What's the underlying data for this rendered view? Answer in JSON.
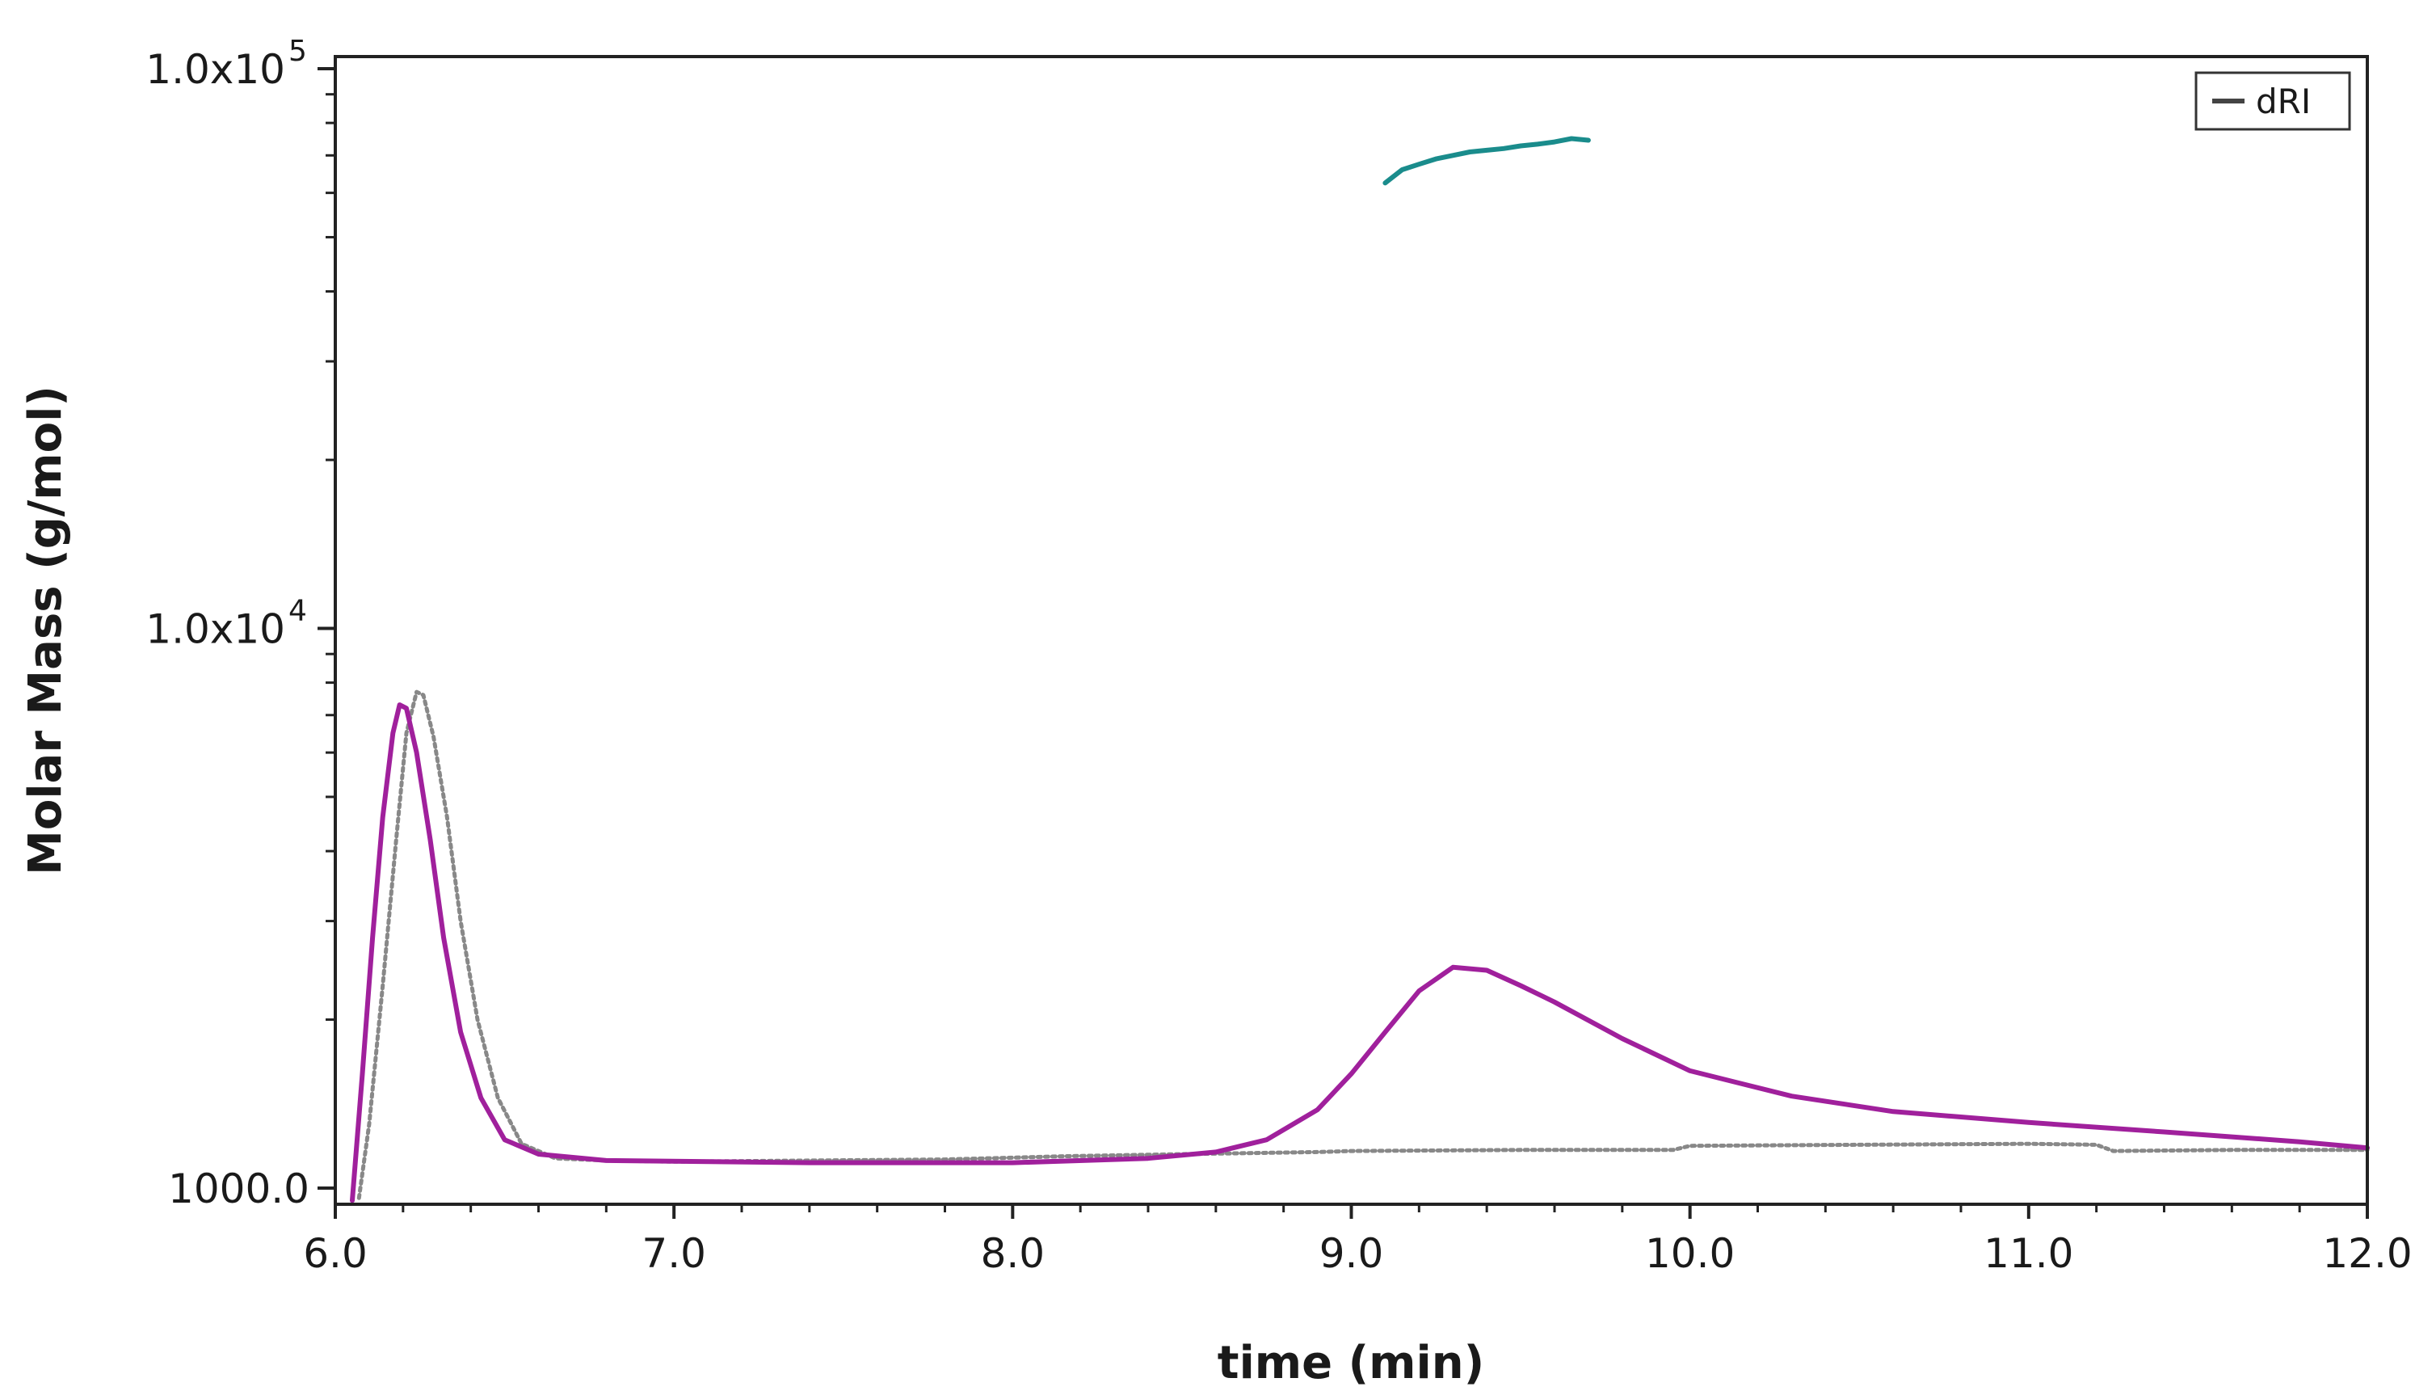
{
  "chart_data": {
    "type": "line",
    "title": "",
    "xlabel": "time (min)",
    "ylabel": "Molar Mass (g/mol)",
    "xlim": [
      6.0,
      12.0
    ],
    "ylim": [
      1000,
      100000
    ],
    "yscale": "log",
    "grid": false,
    "legend_position": "top-right",
    "x_ticks": [
      {
        "value": 6.0,
        "label": "6.0"
      },
      {
        "value": 7.0,
        "label": "7.0"
      },
      {
        "value": 8.0,
        "label": "8.0"
      },
      {
        "value": 9.0,
        "label": "9.0"
      },
      {
        "value": 10.0,
        "label": "10.0"
      },
      {
        "value": 11.0,
        "label": "11.0"
      },
      {
        "value": 12.0,
        "label": "12.0"
      }
    ],
    "y_ticks": [
      {
        "value": 1000,
        "base": "1000.0",
        "exp": ""
      },
      {
        "value": 10000,
        "base": "1.0x10",
        "exp": "4"
      },
      {
        "value": 100000,
        "base": "1.0x10",
        "exp": "5"
      }
    ],
    "y_minor_ticks": [
      2000,
      3000,
      4000,
      5000,
      6000,
      7000,
      8000,
      9000,
      20000,
      30000,
      40000,
      50000,
      60000,
      70000,
      80000,
      90000
    ],
    "legend": [
      {
        "label": "dRI",
        "color": "#444444"
      }
    ],
    "series": [
      {
        "name": "dRI",
        "color": "#888888",
        "style": "dotted",
        "x": [
          6.07,
          6.1,
          6.14,
          6.18,
          6.21,
          6.24,
          6.26,
          6.29,
          6.33,
          6.37,
          6.42,
          6.48,
          6.55,
          6.65,
          6.8,
          7.0,
          7.4,
          7.8,
          8.15,
          8.5,
          8.9,
          9.0,
          9.5,
          9.95,
          10.0,
          10.5,
          11.0,
          11.2,
          11.25,
          11.6,
          12.0
        ],
        "y": [
          960,
          1300,
          2300,
          4200,
          6500,
          7700,
          7600,
          6400,
          4600,
          3000,
          2000,
          1450,
          1200,
          1130,
          1120,
          1115,
          1120,
          1125,
          1140,
          1150,
          1160,
          1165,
          1170,
          1170,
          1190,
          1195,
          1200,
          1195,
          1165,
          1170,
          1170
        ]
      },
      {
        "color": "#a0209c",
        "style": "solid",
        "x": [
          6.05,
          6.08,
          6.11,
          6.14,
          6.17,
          6.19,
          6.21,
          6.24,
          6.28,
          6.32,
          6.37,
          6.43,
          6.5,
          6.6,
          6.8,
          7.4,
          8.0,
          8.4,
          8.6,
          8.75,
          8.9,
          9.0,
          9.1,
          9.2,
          9.3,
          9.4,
          9.5,
          9.6,
          9.8,
          10.0,
          10.3,
          10.6,
          11.0,
          11.4,
          11.8,
          12.0
        ],
        "y": [
          950,
          1600,
          2800,
          4600,
          6500,
          7300,
          7200,
          6000,
          4200,
          2800,
          1900,
          1450,
          1220,
          1150,
          1120,
          1110,
          1110,
          1130,
          1160,
          1220,
          1380,
          1600,
          1900,
          2250,
          2480,
          2450,
          2300,
          2150,
          1850,
          1620,
          1460,
          1370,
          1310,
          1260,
          1210,
          1180
        ]
      },
      {
        "color": "#1a8c8c",
        "style": "solid",
        "x": [
          9.1,
          9.15,
          9.2,
          9.25,
          9.3,
          9.35,
          9.4,
          9.45,
          9.5,
          9.55,
          9.6,
          9.65,
          9.7
        ],
        "y": [
          62500,
          66000,
          67500,
          69000,
          70000,
          71000,
          71500,
          72000,
          72800,
          73300,
          74000,
          75000,
          74500
        ]
      }
    ]
  }
}
